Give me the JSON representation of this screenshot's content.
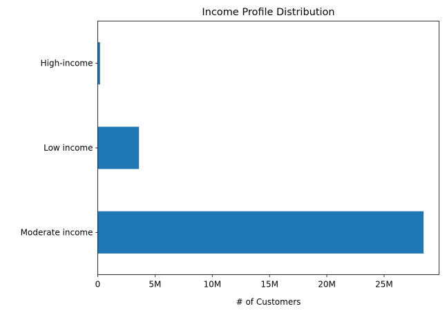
{
  "chart_data": {
    "type": "bar",
    "orientation": "horizontal",
    "title": "Income Profile Distribution",
    "xlabel": "# of Customers",
    "ylabel": "",
    "categories": [
      "Moderate income",
      "Low income",
      "High-income"
    ],
    "values": [
      28450000,
      3600000,
      200000
    ],
    "xlim": [
      0,
      29800000
    ],
    "xticks": [
      0,
      5000000,
      10000000,
      15000000,
      20000000,
      25000000
    ],
    "xtick_labels": [
      "0",
      "5M",
      "10M",
      "15M",
      "20M",
      "25M"
    ],
    "grid": false,
    "legend": "none",
    "colors": {
      "bar": "#1f77b4",
      "axes": "#000000",
      "background": "#ffffff"
    }
  }
}
